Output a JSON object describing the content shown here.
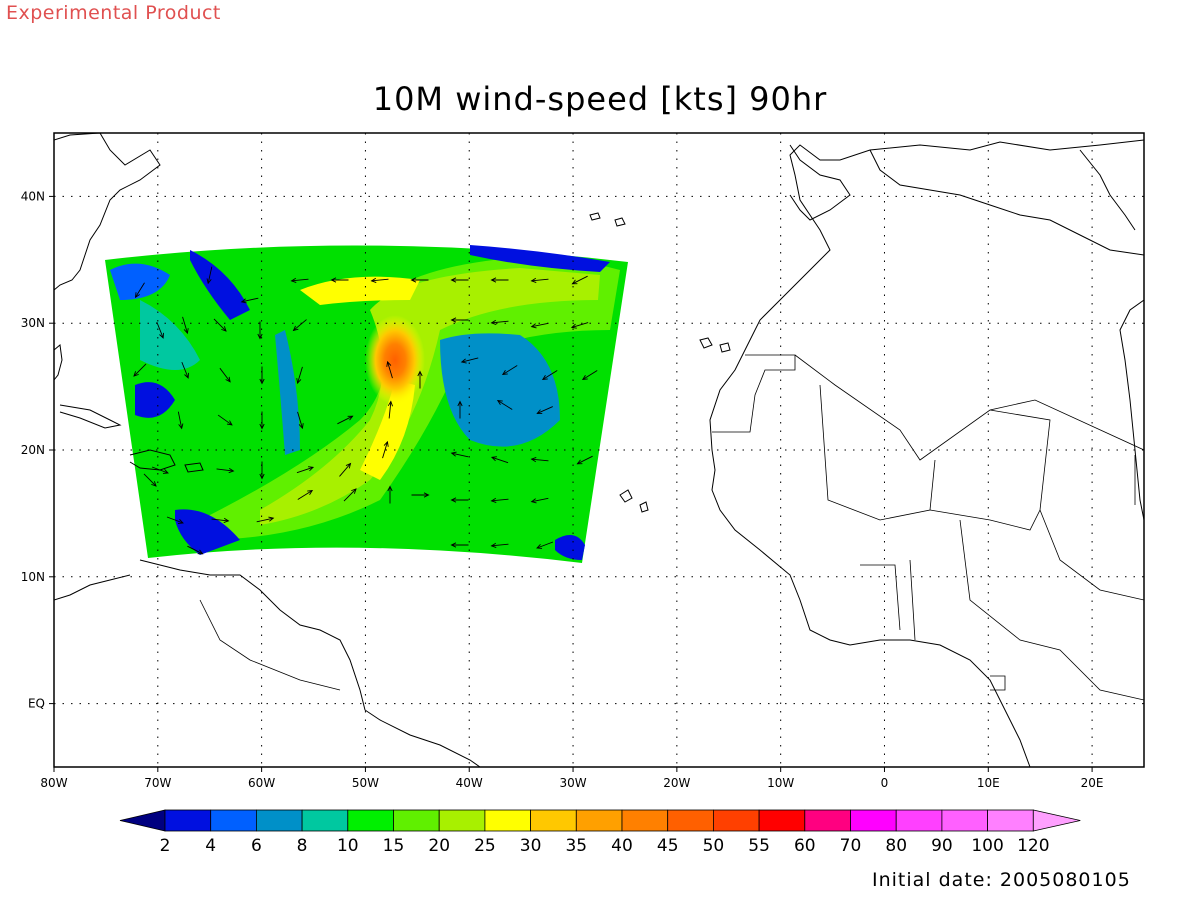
{
  "header": {
    "tag": "Experimental Product",
    "title": "10M wind-speed [kts] 90hr",
    "initial_date": "Initial date: 2005080105"
  },
  "map": {
    "lon_range": [
      -80,
      25
    ],
    "lat_range": [
      -5,
      45
    ],
    "lon_ticks": [
      "80W",
      "70W",
      "60W",
      "50W",
      "40W",
      "30W",
      "20W",
      "10W",
      "0",
      "10E",
      "20E"
    ],
    "lat_ticks": [
      "EQ",
      "10N",
      "20N",
      "30N",
      "40N"
    ],
    "grid": true
  },
  "colorbar": {
    "labels": [
      "2",
      "4",
      "6",
      "8",
      "10",
      "15",
      "20",
      "25",
      "30",
      "35",
      "40",
      "45",
      "50",
      "55",
      "60",
      "70",
      "80",
      "90",
      "100",
      "120"
    ],
    "colors": [
      "#000080",
      "#0010e0",
      "#0060ff",
      "#0090c8",
      "#00c8a0",
      "#00f000",
      "#60f000",
      "#a8f000",
      "#ffff00",
      "#ffc800",
      "#ffa000",
      "#ff8000",
      "#ff6000",
      "#ff4000",
      "#ff0000",
      "#ff0080",
      "#ff00ff",
      "#ff40ff",
      "#ff60ff",
      "#ff80ff",
      "#ffa0ff"
    ]
  }
}
